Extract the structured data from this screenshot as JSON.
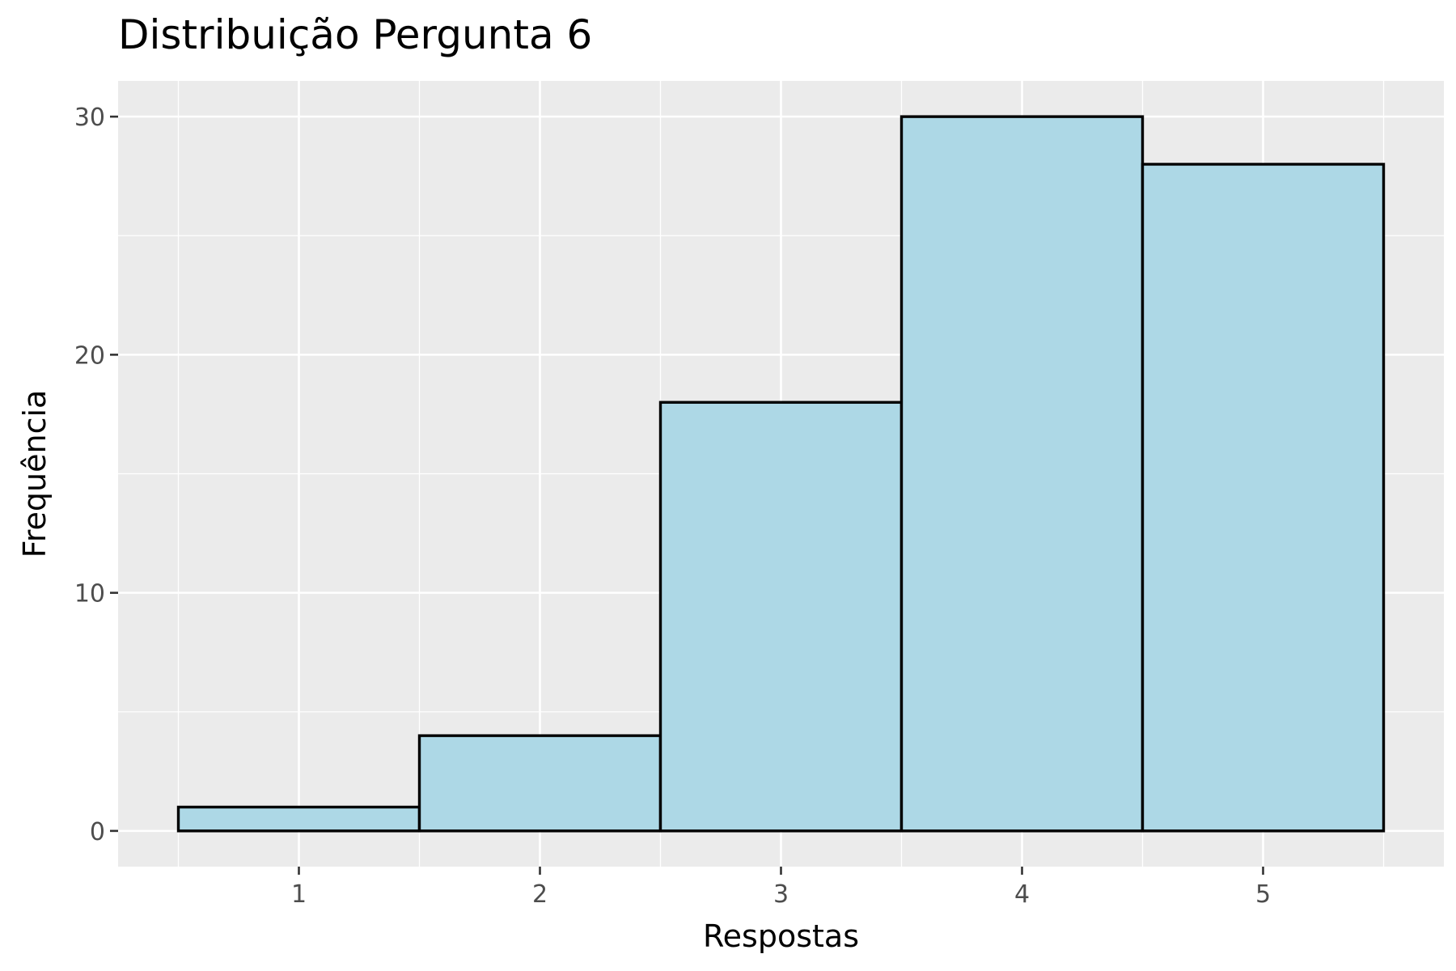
{
  "chart_data": {
    "type": "bar",
    "title": "Distribuição Pergunta 6",
    "xlabel": "Respostas",
    "ylabel": "Frequência",
    "categories": [
      "1",
      "2",
      "3",
      "4",
      "5"
    ],
    "x": [
      1,
      2,
      3,
      4,
      5
    ],
    "values": [
      1,
      4,
      18,
      30,
      28
    ],
    "xlim": [
      0.25,
      5.75
    ],
    "ylim": [
      -1.5,
      31.5
    ],
    "yticks": [
      0,
      10,
      20,
      30
    ],
    "grid": true,
    "legend": "none",
    "colors": {
      "bar_fill": "#add8e6",
      "bar_stroke": "#000000",
      "panel_background": "#ebebeb",
      "grid": "#ffffff"
    }
  }
}
